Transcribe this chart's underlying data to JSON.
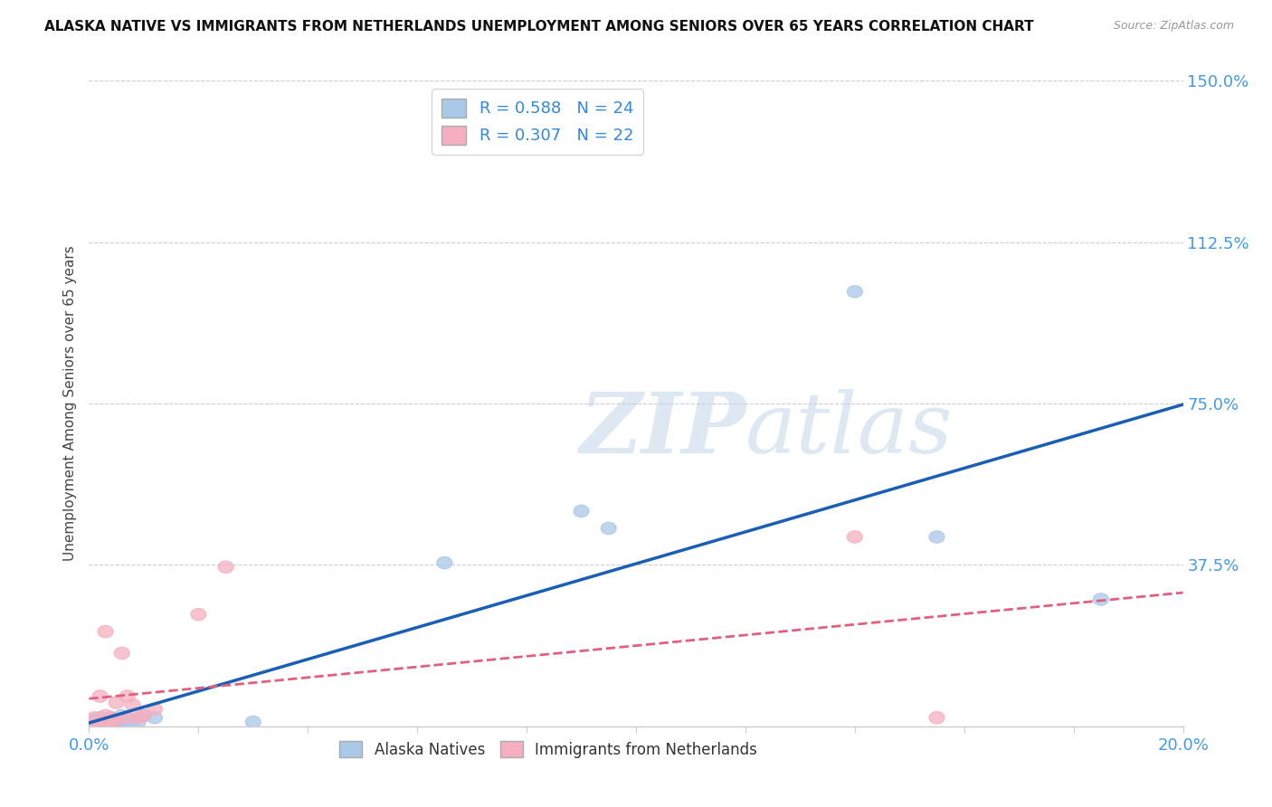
{
  "title": "ALASKA NATIVE VS IMMIGRANTS FROM NETHERLANDS UNEMPLOYMENT AMONG SENIORS OVER 65 YEARS CORRELATION CHART",
  "source": "Source: ZipAtlas.com",
  "ylabel": "Unemployment Among Seniors over 65 years",
  "xlim": [
    0.0,
    0.2
  ],
  "ylim": [
    0.0,
    1.5
  ],
  "yticks": [
    0.0,
    0.375,
    0.75,
    1.125,
    1.5
  ],
  "ytick_labels": [
    "",
    "37.5%",
    "75.0%",
    "112.5%",
    "150.0%"
  ],
  "blue_R": 0.588,
  "blue_N": 24,
  "pink_R": 0.307,
  "pink_N": 22,
  "blue_color": "#aac8e8",
  "pink_color": "#f5afc0",
  "blue_line_color": "#1a5fb4",
  "pink_line_color": "#e06080",
  "background_color": "#ffffff",
  "watermark_zip": "ZIP",
  "watermark_atlas": "atlas",
  "alaska_x": [
    0.001,
    0.001,
    0.002,
    0.002,
    0.003,
    0.003,
    0.004,
    0.004,
    0.005,
    0.005,
    0.006,
    0.006,
    0.007,
    0.008,
    0.009,
    0.01,
    0.012,
    0.03,
    0.065,
    0.09,
    0.095,
    0.14,
    0.155,
    0.185
  ],
  "alaska_y": [
    0.005,
    0.015,
    0.005,
    0.02,
    0.005,
    0.01,
    0.01,
    0.02,
    0.005,
    0.015,
    0.01,
    0.025,
    0.015,
    0.015,
    0.01,
    0.025,
    0.02,
    0.01,
    0.38,
    0.5,
    0.46,
    1.01,
    0.44,
    0.295
  ],
  "netherlands_x": [
    0.001,
    0.001,
    0.002,
    0.002,
    0.003,
    0.003,
    0.003,
    0.004,
    0.004,
    0.005,
    0.005,
    0.006,
    0.007,
    0.007,
    0.008,
    0.009,
    0.01,
    0.012,
    0.02,
    0.025,
    0.14,
    0.155
  ],
  "netherlands_y": [
    0.005,
    0.02,
    0.01,
    0.07,
    0.01,
    0.025,
    0.22,
    0.01,
    0.02,
    0.015,
    0.055,
    0.17,
    0.02,
    0.07,
    0.05,
    0.02,
    0.025,
    0.04,
    0.26,
    0.37,
    0.44,
    0.02
  ]
}
